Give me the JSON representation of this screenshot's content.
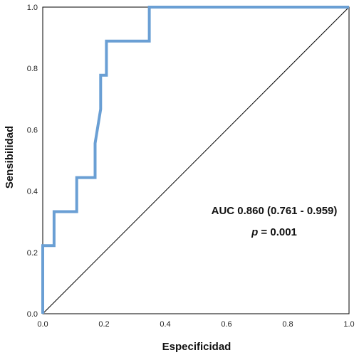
{
  "chart_data": {
    "type": "line",
    "xlabel": "Especificidad",
    "ylabel": "Sensibilidad",
    "xlim": [
      0.0,
      1.0
    ],
    "ylim": [
      0.0,
      1.0
    ],
    "xticks": [
      "0.0",
      "0.2",
      "0.4",
      "0.6",
      "0.8",
      "1.0"
    ],
    "yticks": [
      "0.0",
      "0.2",
      "0.4",
      "0.6",
      "0.8",
      "1.0"
    ],
    "grid": false,
    "series": [
      {
        "color": "#6a9fd4",
        "points": [
          [
            0.0,
            0.0
          ],
          [
            0.0,
            0.222
          ],
          [
            0.037,
            0.222
          ],
          [
            0.037,
            0.333
          ],
          [
            0.111,
            0.333
          ],
          [
            0.111,
            0.444
          ],
          [
            0.171,
            0.444
          ],
          [
            0.171,
            0.556
          ],
          [
            0.189,
            0.667
          ],
          [
            0.189,
            0.778
          ],
          [
            0.208,
            0.778
          ],
          [
            0.208,
            0.889
          ],
          [
            0.348,
            0.889
          ],
          [
            0.348,
            1.0
          ],
          [
            1.0,
            1.0
          ]
        ]
      },
      {
        "color": "#000000",
        "points": [
          [
            0.0,
            0.0
          ],
          [
            1.0,
            1.0
          ]
        ]
      }
    ],
    "annotations": [
      {
        "text": "AUC 0.860 (0.761 - 0.959)"
      },
      {
        "text_italic": "p",
        "text": " = 0.001"
      }
    ]
  }
}
